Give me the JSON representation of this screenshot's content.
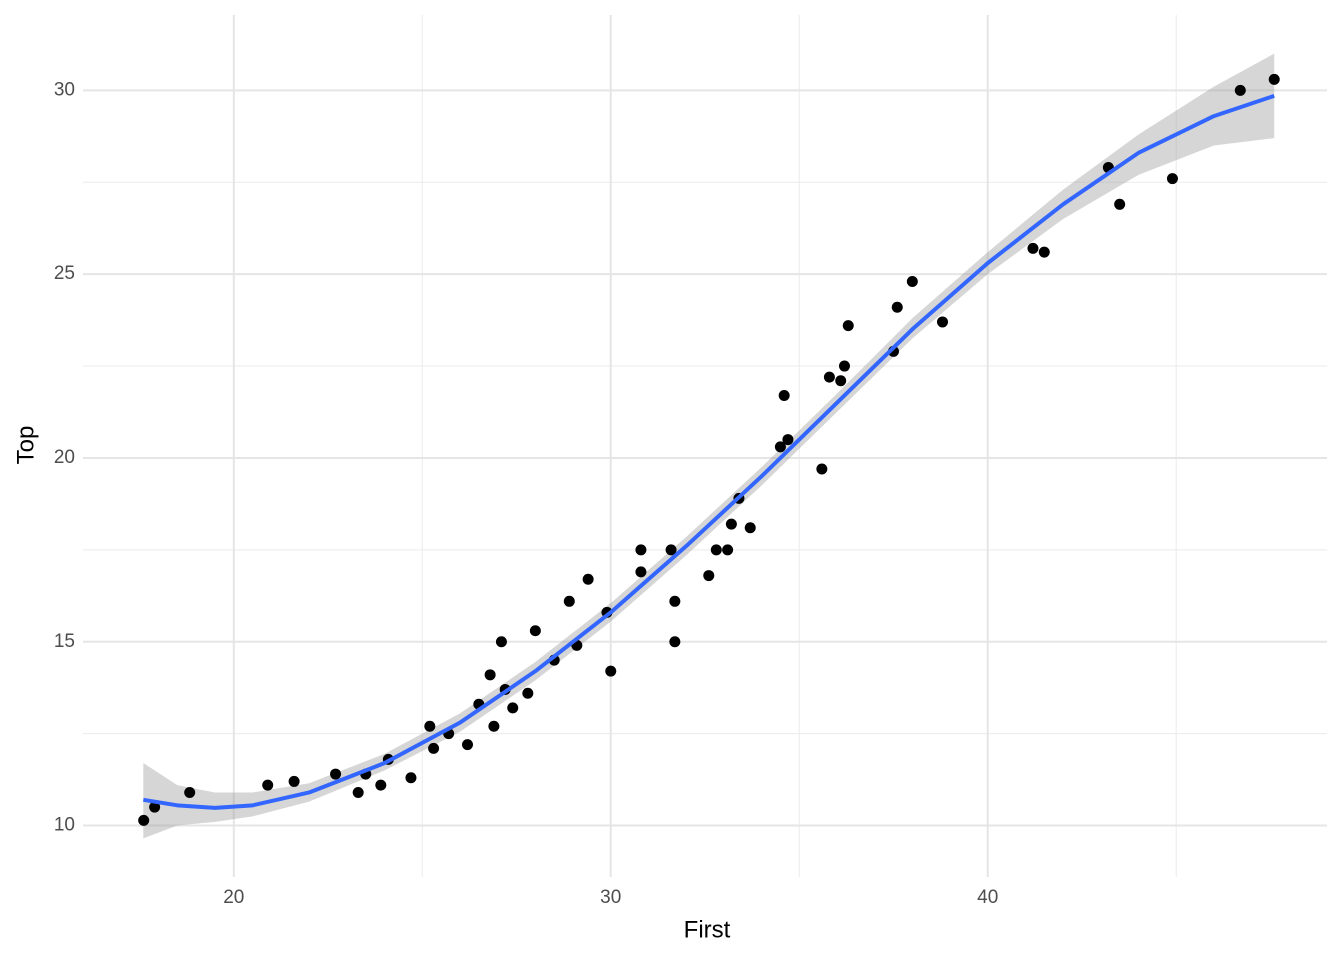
{
  "chart_data": {
    "type": "scatter",
    "x_label": "First",
    "y_label": "Top",
    "xlim": [
      16,
      49
    ],
    "ylim": [
      8.6,
      32.05
    ],
    "xticks": [
      20,
      30,
      40
    ],
    "yticks": [
      10,
      15,
      20,
      25,
      30
    ],
    "x_minor_ticks": [
      25,
      35,
      45
    ],
    "y_minor_ticks": [
      12.5,
      17.5,
      22.5,
      27.5
    ],
    "grid": true,
    "point_color": "#000000",
    "x": [
      17.61,
      17.9,
      18.83,
      20.9,
      21.6,
      22.7,
      23.3,
      23.5,
      23.9,
      24.1,
      24.7,
      25.2,
      25.3,
      25.7,
      26.2,
      26.5,
      26.8,
      26.9,
      27.1,
      27.2,
      27.4,
      27.8,
      28.0,
      28.5,
      28.9,
      29.1,
      29.4,
      29.9,
      30.0,
      30.8,
      30.8,
      31.6,
      31.7,
      31.7,
      32.6,
      32.8,
      33.1,
      33.2,
      33.4,
      33.7,
      34.5,
      34.6,
      34.7,
      35.6,
      35.8,
      36.1,
      36.2,
      36.3,
      37.5,
      37.6,
      38.0,
      38.8,
      41.2,
      41.5,
      43.2,
      43.5,
      44.9,
      46.7,
      47.6
    ],
    "y": [
      10.14,
      10.5,
      10.9,
      11.1,
      11.2,
      11.4,
      10.9,
      11.4,
      11.1,
      11.8,
      11.3,
      12.7,
      12.1,
      12.5,
      12.2,
      13.3,
      14.1,
      12.7,
      15.0,
      13.7,
      13.2,
      13.6,
      15.3,
      14.5,
      16.1,
      14.9,
      16.7,
      15.8,
      14.2,
      16.9,
      17.5,
      17.5,
      16.1,
      15.0,
      16.8,
      17.5,
      17.5,
      18.2,
      18.9,
      18.1,
      20.3,
      21.7,
      20.5,
      19.7,
      22.2,
      22.1,
      22.5,
      23.6,
      22.9,
      24.1,
      24.8,
      23.7,
      25.7,
      25.6,
      27.9,
      26.9,
      27.6,
      30.0,
      30.3
    ],
    "smooth": {
      "color": "#3366ff",
      "band_color": "#999999",
      "x": [
        17.6,
        18.5,
        19.5,
        20.5,
        22,
        24,
        26,
        28,
        30,
        32,
        34,
        36,
        38,
        40,
        42,
        44,
        46,
        47.6
      ],
      "y": [
        10.7,
        10.55,
        10.48,
        10.55,
        10.9,
        11.7,
        12.8,
        14.2,
        15.8,
        17.6,
        19.5,
        21.5,
        23.5,
        25.3,
        26.9,
        28.3,
        29.3,
        29.85
      ],
      "lower": [
        9.65,
        10.0,
        10.1,
        10.25,
        10.65,
        11.5,
        12.55,
        13.95,
        15.55,
        17.35,
        19.25,
        21.25,
        23.25,
        25.0,
        26.5,
        27.7,
        28.5,
        28.7
      ],
      "upper": [
        11.7,
        11.1,
        10.9,
        10.9,
        11.15,
        11.95,
        13.05,
        14.45,
        16.05,
        17.85,
        19.75,
        21.75,
        23.8,
        25.6,
        27.3,
        28.8,
        30.1,
        31.0
      ]
    }
  }
}
